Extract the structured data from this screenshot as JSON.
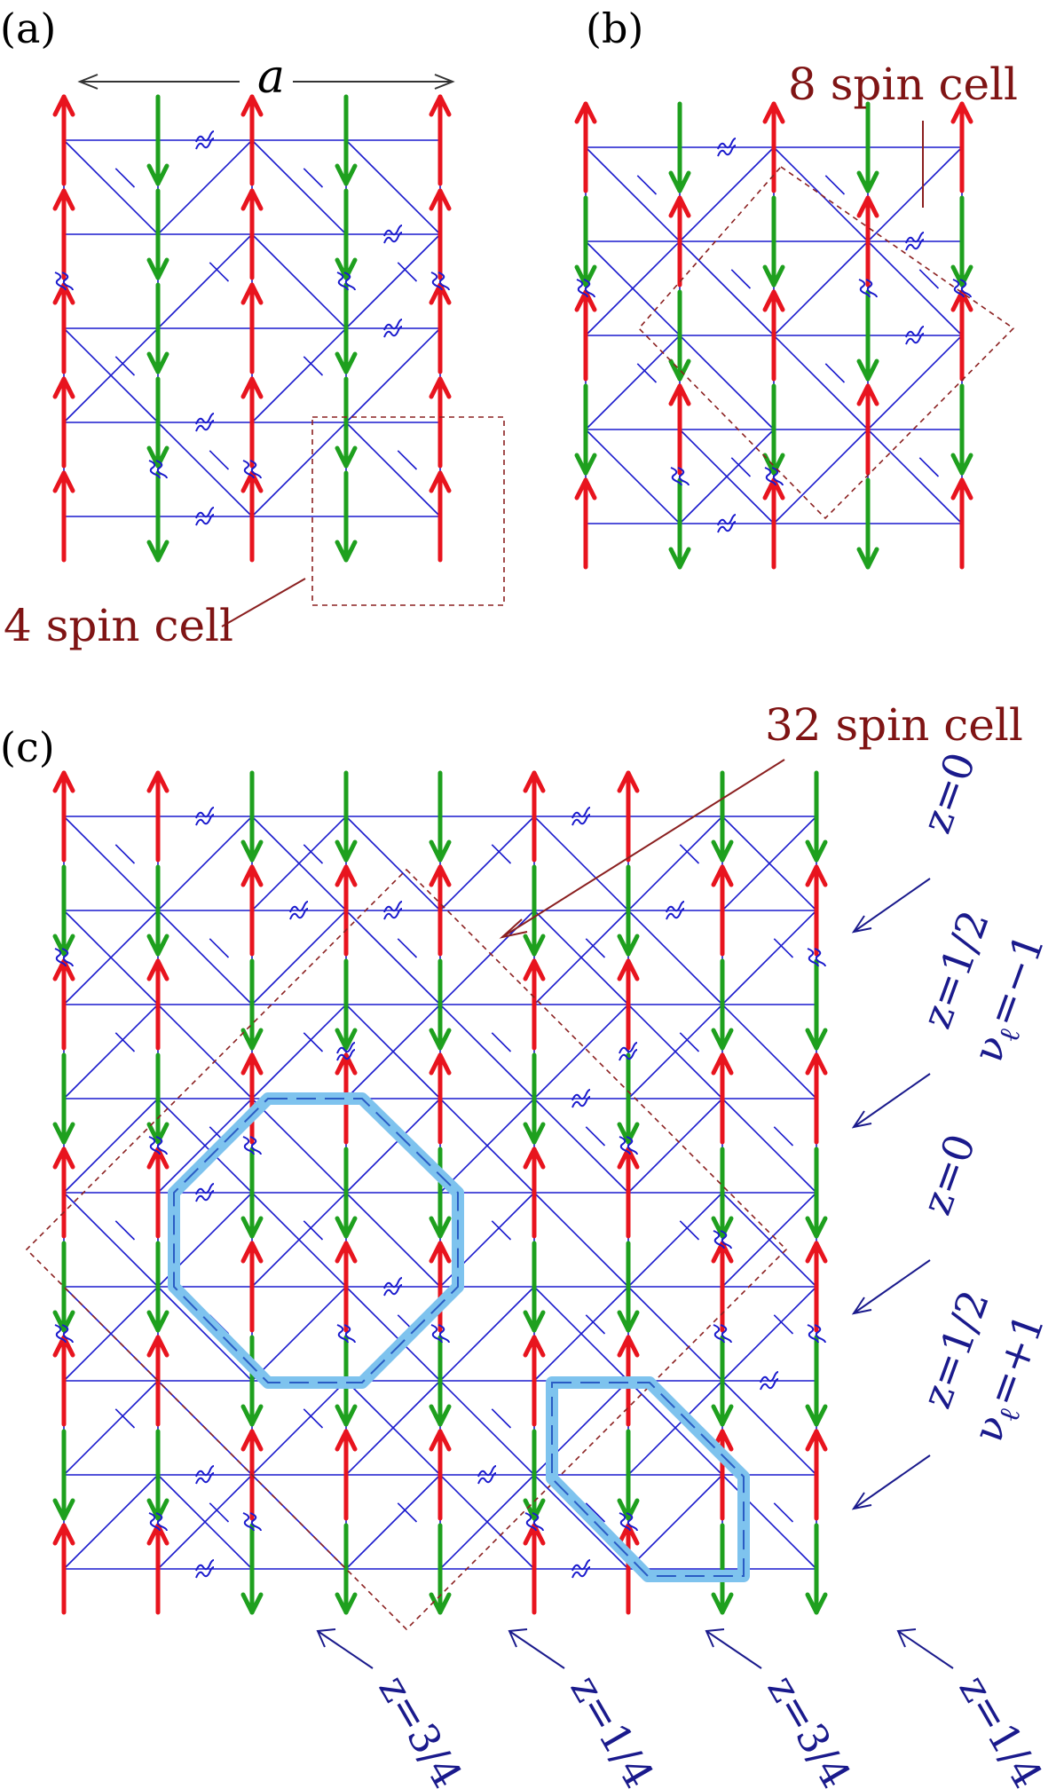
{
  "panels": {
    "a": {
      "label": "(a)",
      "length_label": "a",
      "cell_label": "4 spin cell"
    },
    "b": {
      "label": "(b)",
      "cell_label": "8 spin cell"
    },
    "c": {
      "label": "(c)",
      "cell_label": "32 spin cell",
      "right_labels": [
        {
          "z": "z=0",
          "nu": ""
        },
        {
          "z": "z=1/2",
          "nu": "ν",
          "nu_sub": "ℓ",
          "nu_val": "=−1"
        },
        {
          "z": "z=0",
          "nu": ""
        },
        {
          "z": "z=1/2",
          "nu": "ν",
          "nu_sub": "ℓ",
          "nu_val": "=+1"
        }
      ],
      "bottom_labels": [
        "z=3/4",
        "z=1/4",
        "z=3/4",
        "z=1/4"
      ]
    }
  },
  "colors": {
    "spin_up": "#e8141e",
    "spin_down": "#1ea01e",
    "bond": "#1a1acd",
    "cell_outline": "#8b2020",
    "loop_highlight": "#7ec3ee",
    "loop_core": "#2a5cc4",
    "label_dark_red": "#7f1414",
    "label_navy": "#1a1a8c"
  },
  "icons": {
    "up_spin": "arrow-up-icon",
    "down_spin": "arrow-down-icon",
    "vacancy": "double-wavy-icon"
  }
}
